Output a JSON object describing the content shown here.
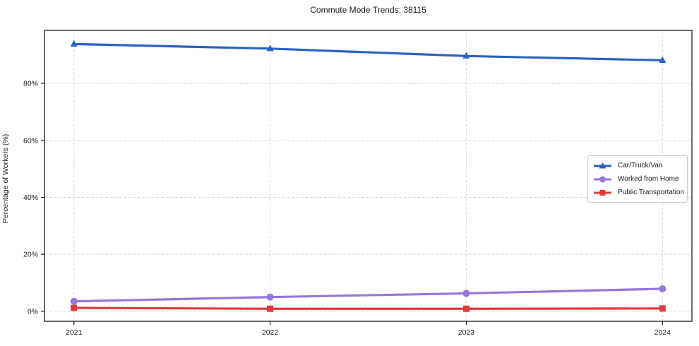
{
  "title": "Commute Mode Trends: 38115",
  "axis": {
    "ylabel": "Percentage of Workers (%)"
  },
  "chart_data": {
    "type": "line",
    "title": "Commute Mode Trends: 38115",
    "xlabel": "",
    "ylabel": "Percentage of Workers (%)",
    "x": [
      2021,
      2022,
      2023,
      2024
    ],
    "x_tick_labels": [
      "2021",
      "2022",
      "2023",
      "2024"
    ],
    "y_ticks": [
      0,
      20,
      40,
      60,
      80
    ],
    "y_tick_labels": [
      "0%",
      "20%",
      "40%",
      "60%",
      "80%"
    ],
    "xlim": [
      2020.85,
      2024.15
    ],
    "ylim": [
      -3.5,
      98.6
    ],
    "grid": true,
    "grid_style": "dashed",
    "legend_position": "center right",
    "series": [
      {
        "name": "Car/Truck/Van",
        "color": "#2b62c2",
        "marker": "triangle",
        "values": [
          93.8,
          92.2,
          89.6,
          88.1
        ]
      },
      {
        "name": "Worked from Home",
        "color": "#9777d8",
        "marker": "circle",
        "values": [
          3.5,
          5.0,
          6.3,
          7.9
        ]
      },
      {
        "name": "Public Transportation",
        "color": "#e03b3d",
        "marker": "square",
        "values": [
          1.2,
          0.9,
          0.9,
          1.0
        ]
      }
    ],
    "colors": {
      "grid": "#d6d6d6",
      "spine": "#1c1c1c",
      "tick_text": "#1a1a1a",
      "background": "#ffffff"
    }
  }
}
